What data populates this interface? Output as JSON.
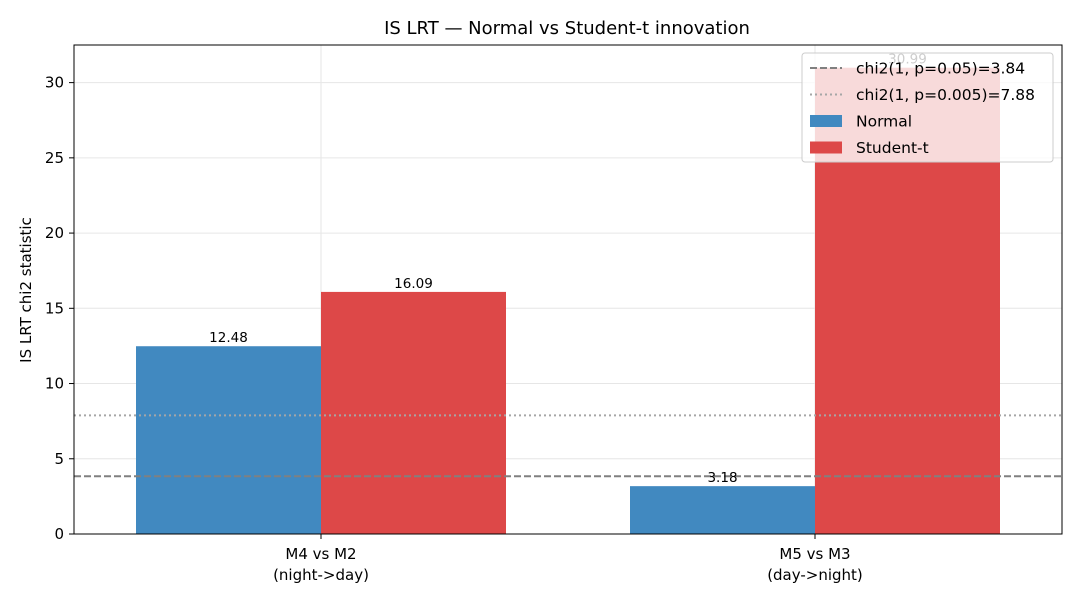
{
  "chart_data": {
    "type": "bar",
    "title": "IS LRT — Normal vs Student-t innovation",
    "xlabel": "",
    "ylabel": "IS LRT chi2 statistic",
    "categories": [
      "M4 vs M2\n(night->day)",
      "M5 vs M3\n(day->night)"
    ],
    "series": [
      {
        "name": "Normal",
        "color": "#4189c0",
        "values": [
          12.48,
          3.18
        ],
        "labels": [
          "12.48",
          "3.18"
        ]
      },
      {
        "name": "Student-t",
        "color": "#dd4848",
        "values": [
          16.09,
          30.99
        ],
        "labels": [
          "16.09",
          "30.99"
        ]
      }
    ],
    "reference_lines": [
      {
        "label": "chi2(1, p=0.05)=3.84",
        "value": 3.84,
        "style": "dashed",
        "color": "#808080"
      },
      {
        "label": "chi2(1, p=0.005)=7.88",
        "value": 7.88,
        "style": "dotted",
        "color": "#a6a6a6"
      }
    ],
    "ylim": [
      0,
      32.5
    ],
    "yticks": [
      0,
      5,
      10,
      15,
      20,
      25,
      30
    ],
    "grid": true,
    "legend_position": "top-right"
  }
}
